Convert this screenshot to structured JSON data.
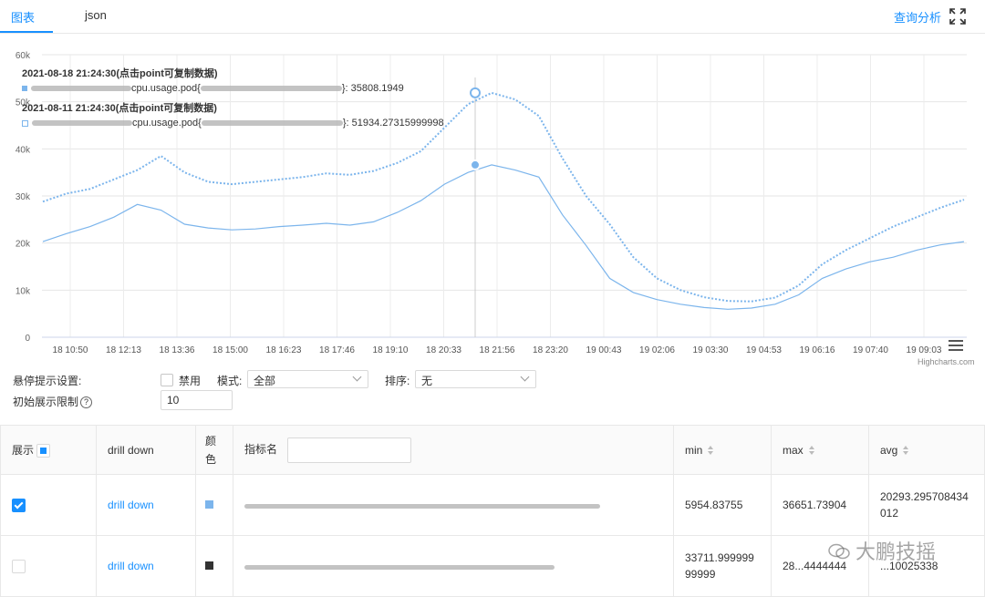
{
  "tabs": [
    {
      "label": "图表",
      "active": true
    },
    {
      "label": "json",
      "active": false
    }
  ],
  "header": {
    "query_link": "查询分析",
    "fullscreen_icon": "expand-icon"
  },
  "chart_data": {
    "type": "line",
    "y_ticks": [
      "0",
      "10k",
      "20k",
      "30k",
      "40k",
      "50k",
      "60k"
    ],
    "ylim": [
      0,
      60000
    ],
    "x_ticks": [
      "18 10:50",
      "18 12:13",
      "18 13:36",
      "18 15:00",
      "18 16:23",
      "18 17:46",
      "18 19:10",
      "18 20:33",
      "18 21:56",
      "18 23:20",
      "19 00:43",
      "19 02:06",
      "19 03:30",
      "19 04:53",
      "19 06:16",
      "19 07:40",
      "19 09:03"
    ],
    "series": [
      {
        "style": "solid",
        "color": "#7cb5ec",
        "values": [
          20300,
          22000,
          23500,
          25500,
          28200,
          27000,
          24000,
          23200,
          22800,
          23000,
          23500,
          23800,
          24200,
          23800,
          24500,
          26500,
          29000,
          32500,
          35000,
          36600,
          35500,
          34000,
          26000,
          19500,
          12500,
          9500,
          8000,
          7000,
          6300,
          5950,
          6200,
          7000,
          9000,
          12500,
          14500,
          16000,
          17000,
          18500,
          19600,
          20300
        ]
      },
      {
        "style": "dotted",
        "color": "#7cb5ec",
        "values": [
          28800,
          30500,
          31500,
          33500,
          35500,
          38500,
          35000,
          33000,
          32500,
          33000,
          33500,
          34000,
          34800,
          34500,
          35300,
          37000,
          39500,
          44500,
          49500,
          51900,
          50500,
          47000,
          38000,
          30000,
          24000,
          17000,
          12500,
          10000,
          8500,
          7700,
          7600,
          8400,
          11000,
          15500,
          18500,
          21000,
          23500,
          25500,
          27500,
          29200
        ]
      }
    ],
    "tooltips": [
      {
        "title": "2021-08-18 21:24:30(点击point可复制数据)",
        "label": "cpu.usage.pod{",
        "value": "}: 35808.1949"
      },
      {
        "title": "2021-08-11 21:24:30(点击point可复制数据)",
        "label": "cpu.usage.pod{",
        "value": "}: 51934.27315999998"
      }
    ],
    "credit": "Highcharts.com"
  },
  "settings": {
    "hover_label": "悬停提示设置:",
    "disable_label": "禁用",
    "mode_label": "模式:",
    "mode_value": "全部",
    "sort_label": "排序:",
    "sort_value": "无",
    "limit_label": "初始展示限制",
    "limit_value": "10"
  },
  "table": {
    "headers": {
      "show": "展示",
      "drill": "drill down",
      "color": "颜色",
      "metric": "指标名",
      "min": "min",
      "max": "max",
      "avg": "avg"
    },
    "rows": [
      {
        "checked": true,
        "drill": "drill down",
        "color": "#7cb5ec",
        "min": "5954.83755",
        "max": "36651.73904",
        "avg": "20293.295708434012"
      },
      {
        "checked": false,
        "drill": "drill down",
        "color": "#333333",
        "min": "33711.99999999999",
        "max": "28...4444444",
        "avg": "...10025338"
      }
    ]
  },
  "watermark": "大鹏技摇"
}
